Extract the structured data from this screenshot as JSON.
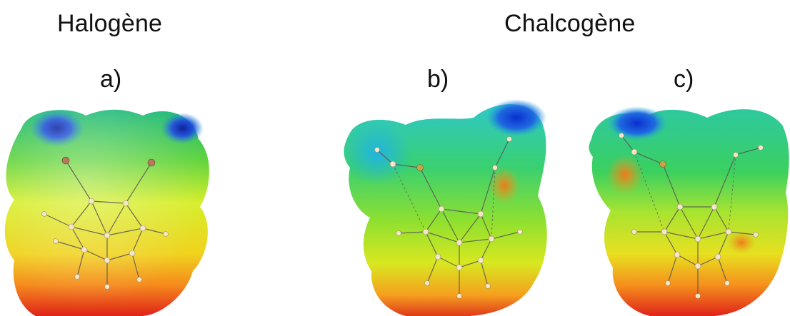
{
  "headings": {
    "halogen": "Halogène",
    "chalcogen": "Chalcogène"
  },
  "panels": [
    {
      "label": "a)"
    },
    {
      "label": "b)"
    },
    {
      "label": "c)"
    }
  ],
  "colors": {
    "negative": "#0a2fd0",
    "low": "#19c8e0",
    "mid_low": "#2fd35a",
    "mid": "#d8f020",
    "mid_high": "#ffa21e",
    "positive": "#e0231a",
    "atom_light": "#f5e6c8",
    "atom_halogen": "#b47a5a",
    "bond": "#555555"
  }
}
